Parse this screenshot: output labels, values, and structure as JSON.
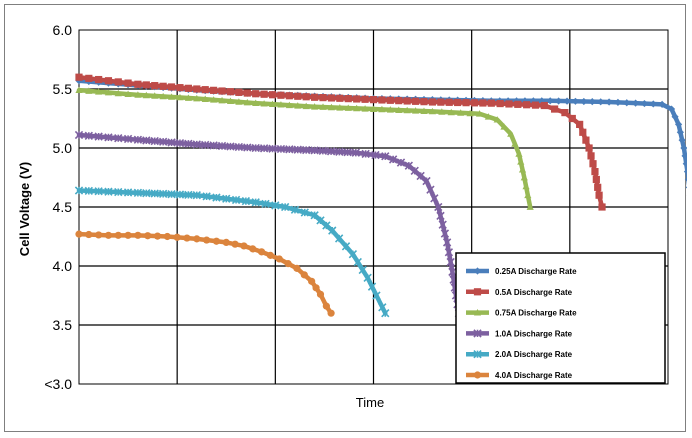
{
  "chart_data": {
    "type": "line",
    "title": "",
    "xlabel": "Time",
    "ylabel": "Cell Voltage (V)",
    "x_range": [
      0,
      10
    ],
    "ylim": [
      3.0,
      6.0
    ],
    "y_ticks": [
      "<3.0",
      "3.5",
      "4.0",
      "4.5",
      "5.0",
      "5.5",
      "6.0"
    ],
    "grid": true,
    "legend_position": "lower-right",
    "series": [
      {
        "name": "0.25A Discharge Rate",
        "color": "#4a7ebb",
        "marker": "diamond",
        "x": [
          0,
          0.5,
          1,
          2,
          3,
          4,
          5,
          6,
          7,
          8,
          9,
          9.9,
          10.06,
          10.18,
          10.27,
          10.33,
          10.38,
          10.42
        ],
        "y": [
          5.57,
          5.55,
          5.53,
          5.49,
          5.46,
          5.44,
          5.42,
          5.41,
          5.4,
          5.4,
          5.39,
          5.37,
          5.33,
          5.2,
          5.0,
          4.8,
          4.6,
          4.5
        ]
      },
      {
        "name": "0.5A Discharge Rate",
        "color": "#be4b48",
        "marker": "square",
        "x": [
          0,
          0.5,
          1,
          2,
          3,
          4,
          5,
          6,
          7,
          7.9,
          8.25,
          8.5,
          8.66,
          8.76,
          8.83,
          8.88
        ],
        "y": [
          5.6,
          5.57,
          5.54,
          5.5,
          5.46,
          5.43,
          5.41,
          5.39,
          5.38,
          5.36,
          5.3,
          5.2,
          5.0,
          4.8,
          4.6,
          4.5
        ]
      },
      {
        "name": "0.75A Discharge Rate",
        "color": "#98b954",
        "marker": "triangle",
        "x": [
          0,
          0.5,
          1,
          2,
          3,
          4,
          5,
          6,
          6.8,
          7.1,
          7.33,
          7.47,
          7.56,
          7.62,
          7.66
        ],
        "y": [
          5.49,
          5.47,
          5.45,
          5.42,
          5.38,
          5.35,
          5.33,
          5.31,
          5.29,
          5.24,
          5.12,
          4.95,
          4.75,
          4.6,
          4.5
        ]
      },
      {
        "name": "1.0A Discharge Rate",
        "color": "#7d60a0",
        "marker": "x",
        "x": [
          0,
          0.5,
          1,
          2,
          3,
          4,
          4.7,
          5.2,
          5.6,
          5.9,
          6.1,
          6.25,
          6.34,
          6.4,
          6.45
        ],
        "y": [
          5.11,
          5.09,
          5.07,
          5.03,
          5.0,
          4.98,
          4.96,
          4.93,
          4.85,
          4.72,
          4.5,
          4.2,
          3.95,
          3.75,
          3.6
        ]
      },
      {
        "name": "2.0A Discharge Rate",
        "color": "#46aac5",
        "marker": "x",
        "x": [
          0,
          0.5,
          1,
          2,
          2.5,
          3,
          3.5,
          4,
          4.3,
          4.65,
          4.9,
          5.05,
          5.15,
          5.2
        ],
        "y": [
          4.64,
          4.63,
          4.62,
          4.6,
          4.57,
          4.54,
          4.5,
          4.43,
          4.3,
          4.1,
          3.9,
          3.75,
          3.65,
          3.6
        ]
      },
      {
        "name": "4.0A Discharge Rate",
        "color": "#db843d",
        "marker": "circle",
        "x": [
          0,
          0.5,
          1,
          1.5,
          2,
          2.5,
          2.8,
          3.1,
          3.4,
          3.7,
          3.95,
          4.1,
          4.2,
          4.28
        ],
        "y": [
          4.27,
          4.26,
          4.26,
          4.25,
          4.23,
          4.2,
          4.17,
          4.12,
          4.06,
          3.98,
          3.87,
          3.76,
          3.66,
          3.6
        ]
      }
    ]
  }
}
